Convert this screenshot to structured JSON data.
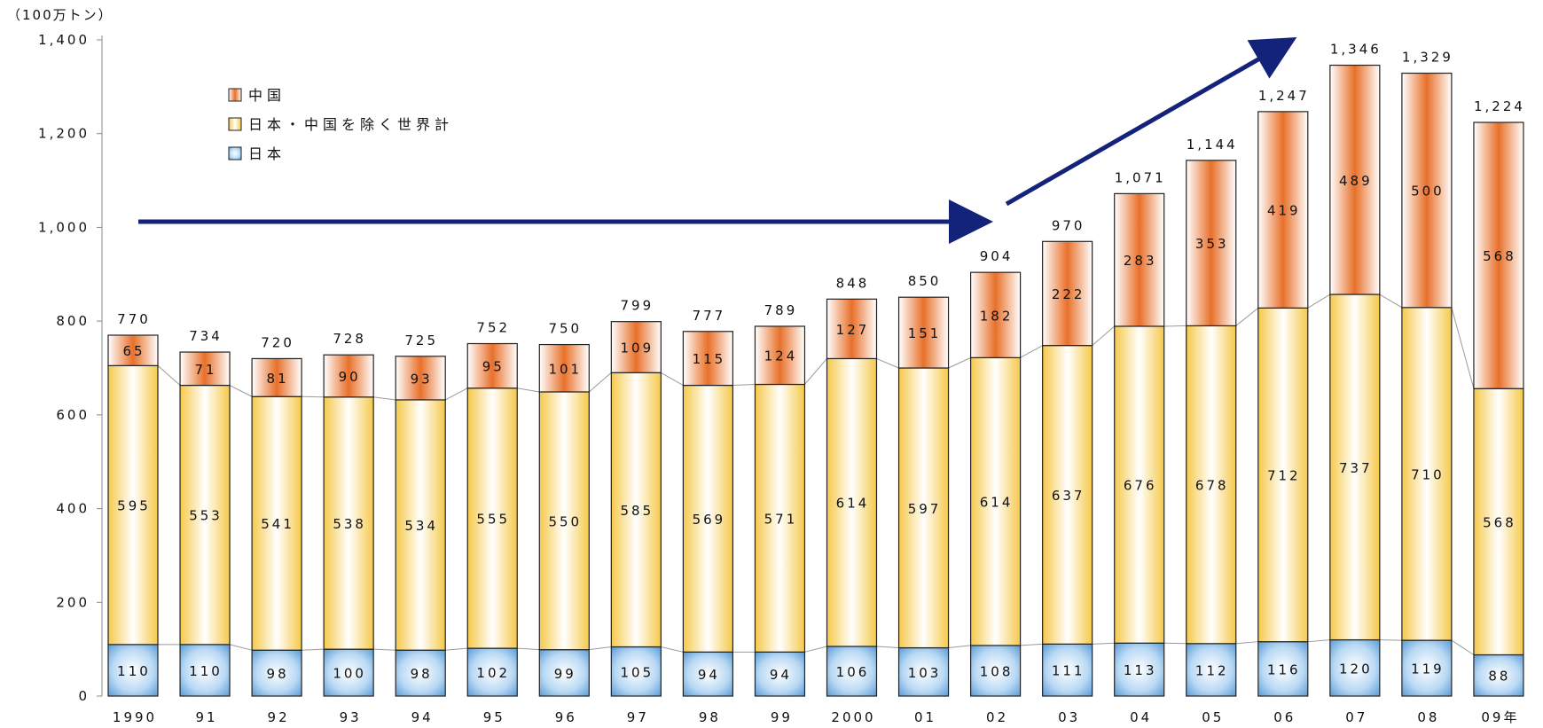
{
  "chart_data": {
    "type": "bar",
    "stacked": true,
    "unit_label": "（100万トン）",
    "categories": [
      "1990",
      "91",
      "92",
      "93",
      "94",
      "95",
      "96",
      "97",
      "98",
      "99",
      "2000",
      "01",
      "02",
      "03",
      "04",
      "05",
      "06",
      "07",
      "08",
      "09年"
    ],
    "series": [
      {
        "name": "日本",
        "values": [
          110,
          110,
          98,
          100,
          98,
          102,
          99,
          105,
          94,
          94,
          106,
          103,
          108,
          111,
          113,
          112,
          116,
          120,
          119,
          88
        ],
        "color": "#6fa8dc"
      },
      {
        "name": "日本・中国を除く世界計",
        "values": [
          595,
          553,
          541,
          538,
          534,
          555,
          550,
          585,
          569,
          571,
          614,
          597,
          614,
          637,
          676,
          678,
          712,
          737,
          710,
          568
        ],
        "color": "#f6d55c"
      },
      {
        "name": "中国",
        "values": [
          65,
          71,
          81,
          90,
          93,
          95,
          101,
          109,
          115,
          124,
          127,
          151,
          182,
          222,
          283,
          353,
          419,
          489,
          500,
          568
        ],
        "color": "#e8702a"
      }
    ],
    "totals": [
      "770",
      "734",
      "720",
      "728",
      "725",
      "752",
      "750",
      "799",
      "777",
      "789",
      "848",
      "850",
      "904",
      "970",
      "1,071",
      "1,144",
      "1,247",
      "1,346",
      "1,329",
      "1,224"
    ],
    "y_ticks": [
      "0",
      "200",
      "400",
      "600",
      "800",
      "1,000",
      "1,200",
      "1,400"
    ],
    "ylim": [
      0,
      1400
    ],
    "legend_position": "top-left",
    "grid": false
  }
}
